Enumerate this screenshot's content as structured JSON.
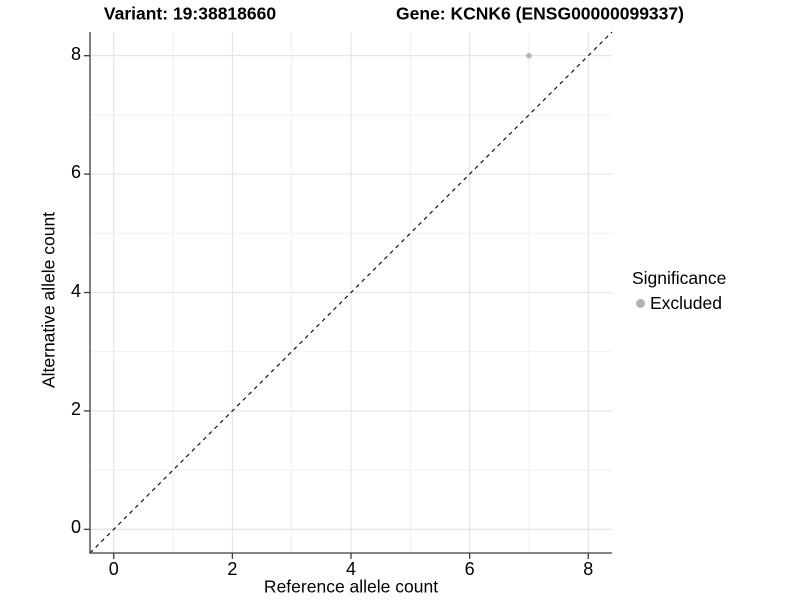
{
  "titles": {
    "left": "Variant: 19:38818660",
    "right": "Gene: KCNK6 (ENSG00000099337)"
  },
  "chart_data": {
    "type": "scatter",
    "title_left": "Variant: 19:38818660",
    "title_right": "Gene: KCNK6 (ENSG00000099337)",
    "xlabel": "Reference allele count",
    "ylabel": "Alternative allele count",
    "xlim": [
      -0.4,
      8.4
    ],
    "ylim": [
      -0.4,
      8.4
    ],
    "x_ticks": [
      0,
      2,
      4,
      6,
      8
    ],
    "y_ticks": [
      0,
      2,
      4,
      6,
      8
    ],
    "x_tick_labels": [
      "0",
      "2",
      "4",
      "6",
      "8"
    ],
    "y_tick_labels": [
      "0",
      "2",
      "4",
      "6",
      "8"
    ],
    "grid": {
      "major_every": 2,
      "minor_every": 1,
      "major_color": "#e3e3e3",
      "minor_color": "#efefef"
    },
    "reference_line": {
      "type": "identity y=x",
      "style": "dashed",
      "color": "#000000"
    },
    "series": [
      {
        "name": "Excluded",
        "color": "#b2b2b2",
        "points": [
          {
            "x": 7,
            "y": 8
          }
        ]
      }
    ],
    "legend": {
      "position": "right",
      "title": "Significance",
      "entries": [
        {
          "label": "Excluded",
          "color": "#b2b2b2"
        }
      ]
    }
  },
  "colors": {
    "background": "#ffffff",
    "axis_line": "#3c3c3c",
    "tick_mark": "#3c3c3c",
    "text": "#000000",
    "excluded_point": "#b2b2b2"
  }
}
